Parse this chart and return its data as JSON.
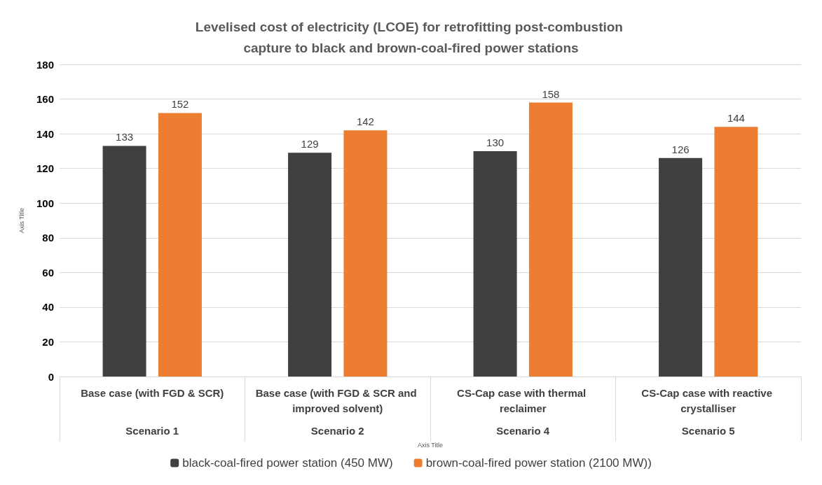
{
  "chart_data": {
    "type": "bar",
    "title": "Levelised cost of electricity (LCOE) for retrofitting post-combustion capture to black and brown-coal-fired power stations",
    "xlabel": "Axis Title",
    "ylabel": "Axis Title",
    "categories": [
      "Base case (with FGD & SCR)",
      "Base case (with FGD & SCR and improved solvent)",
      "CS-Cap case with thermal reclaimer",
      "CS-Cap case with reactive crystalliser"
    ],
    "annotations": [
      "Scenario 1",
      "Scenario 2",
      "Scenario 4",
      "Scenario 5"
    ],
    "series": [
      {
        "name": "black-coal-fired power station (450 MW)",
        "color": "#404040",
        "values": [
          133,
          129,
          130,
          126
        ]
      },
      {
        "name": "brown-coal-fired power station (2100 MW))",
        "color": "#ed7d31",
        "values": [
          152,
          142,
          158,
          144
        ]
      }
    ],
    "ylim": [
      0,
      180
    ],
    "yticks": [
      0,
      20,
      40,
      60,
      80,
      100,
      120,
      140,
      160,
      180
    ],
    "grid": "y",
    "legend": "bottom",
    "data_labels": true
  }
}
